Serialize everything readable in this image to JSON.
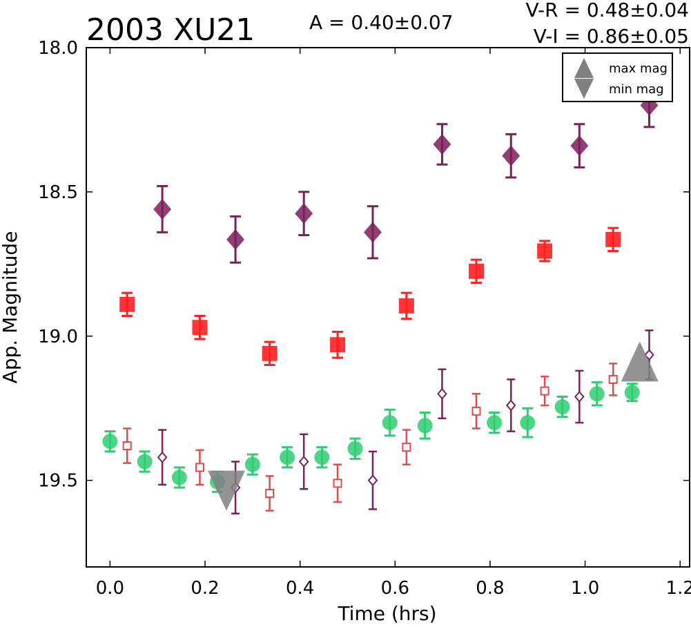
{
  "chart_data": {
    "type": "scatter",
    "title": "2003 XU21",
    "annotations": {
      "amplitude": "A  = 0.40±0.07",
      "v_r": "V-R = 0.48±0.04",
      "v_i": "V-I  = 0.86±0.05"
    },
    "xlabel": "Time (hrs)",
    "ylabel": "App. Magnitude",
    "xlim": [
      -0.05,
      1.22
    ],
    "ylim": [
      19.8,
      18.0
    ],
    "y_inverted": true,
    "grid": false,
    "legend_position": "top-right",
    "x_ticks": [
      "0.0",
      "0.2",
      "0.4",
      "0.6",
      "0.8",
      "1.0",
      "1.2"
    ],
    "y_ticks": [
      "18.0",
      "18.5",
      "19.0",
      "19.5"
    ],
    "series": [
      {
        "marker": "circle",
        "color": "#2ecc71",
        "points": [
          {
            "x": 0.0,
            "y": 19.365,
            "err": 0.035
          },
          {
            "x": 0.073,
            "y": 19.435,
            "err": 0.035
          },
          {
            "x": 0.146,
            "y": 19.49,
            "err": 0.035
          },
          {
            "x": 0.226,
            "y": 19.505,
            "err": 0.035
          },
          {
            "x": 0.3,
            "y": 19.445,
            "err": 0.035
          },
          {
            "x": 0.373,
            "y": 19.42,
            "err": 0.035
          },
          {
            "x": 0.446,
            "y": 19.42,
            "err": 0.035
          },
          {
            "x": 0.516,
            "y": 19.39,
            "err": 0.035
          },
          {
            "x": 0.589,
            "y": 19.3,
            "err": 0.045
          },
          {
            "x": 0.663,
            "y": 19.31,
            "err": 0.045
          },
          {
            "x": 0.809,
            "y": 19.3,
            "err": 0.035
          },
          {
            "x": 0.879,
            "y": 19.3,
            "err": 0.05
          },
          {
            "x": 0.952,
            "y": 19.245,
            "err": 0.035
          },
          {
            "x": 1.025,
            "y": 19.2,
            "err": 0.04
          },
          {
            "x": 1.099,
            "y": 19.195,
            "err": 0.03
          }
        ]
      },
      {
        "marker": "filled-square",
        "color": "#ff1f1f",
        "points": [
          {
            "x": 0.036,
            "y": 18.89,
            "err": 0.04
          },
          {
            "x": 0.189,
            "y": 18.97,
            "err": 0.04
          },
          {
            "x": 0.336,
            "y": 19.06,
            "err": 0.04
          },
          {
            "x": 0.479,
            "y": 19.03,
            "err": 0.045
          },
          {
            "x": 0.624,
            "y": 18.895,
            "err": 0.045
          },
          {
            "x": 0.771,
            "y": 18.775,
            "err": 0.04
          },
          {
            "x": 0.915,
            "y": 18.705,
            "err": 0.035
          },
          {
            "x": 1.059,
            "y": 18.665,
            "err": 0.04
          }
        ]
      },
      {
        "marker": "open-square",
        "color": "#e8474a",
        "points": [
          {
            "x": 0.036,
            "y": 19.38,
            "err": 0.06
          },
          {
            "x": 0.189,
            "y": 19.455,
            "err": 0.06
          },
          {
            "x": 0.336,
            "y": 19.545,
            "err": 0.06
          },
          {
            "x": 0.479,
            "y": 19.51,
            "err": 0.065
          },
          {
            "x": 0.624,
            "y": 19.385,
            "err": 0.06
          },
          {
            "x": 0.771,
            "y": 19.26,
            "err": 0.06
          },
          {
            "x": 0.915,
            "y": 19.19,
            "err": 0.05
          },
          {
            "x": 1.059,
            "y": 19.15,
            "err": 0.055
          }
        ]
      },
      {
        "marker": "filled-diamond",
        "color": "#7b1f5a",
        "points": [
          {
            "x": 0.11,
            "y": 18.56,
            "err": 0.08
          },
          {
            "x": 0.264,
            "y": 18.665,
            "err": 0.08
          },
          {
            "x": 0.408,
            "y": 18.575,
            "err": 0.075
          },
          {
            "x": 0.553,
            "y": 18.64,
            "err": 0.09
          },
          {
            "x": 0.699,
            "y": 18.335,
            "err": 0.07
          },
          {
            "x": 0.844,
            "y": 18.375,
            "err": 0.075
          },
          {
            "x": 0.988,
            "y": 18.34,
            "err": 0.075
          },
          {
            "x": 1.135,
            "y": 18.2,
            "err": 0.075
          }
        ]
      },
      {
        "marker": "open-diamond",
        "color": "#7b1f5a",
        "points": [
          {
            "x": 0.11,
            "y": 19.42,
            "err": 0.095
          },
          {
            "x": 0.264,
            "y": 19.525,
            "err": 0.09
          },
          {
            "x": 0.408,
            "y": 19.435,
            "err": 0.095
          },
          {
            "x": 0.553,
            "y": 19.5,
            "err": 0.1
          },
          {
            "x": 0.699,
            "y": 19.2,
            "err": 0.085
          },
          {
            "x": 0.844,
            "y": 19.24,
            "err": 0.09
          },
          {
            "x": 0.988,
            "y": 19.21,
            "err": 0.09
          },
          {
            "x": 1.135,
            "y": 19.065,
            "err": 0.085
          }
        ]
      }
    ],
    "extrema": {
      "max_mag": {
        "x": 1.115,
        "y": 19.15
      },
      "min_mag": {
        "x": 0.245,
        "y": 19.5
      }
    },
    "legend": [
      {
        "label": "max mag",
        "marker": "triangle-up",
        "color": "#808080"
      },
      {
        "label": "min mag",
        "marker": "triangle-down",
        "color": "#808080"
      }
    ]
  }
}
